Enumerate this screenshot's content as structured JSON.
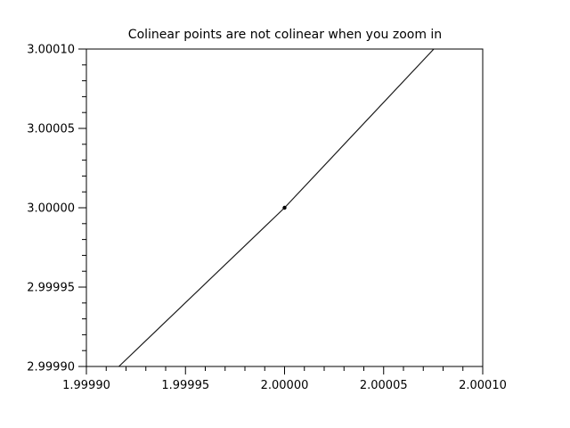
{
  "figure": {
    "background": "#ffffff",
    "axis_color": "#000000",
    "line_color": "#1a1a1a",
    "marker_color": "#000000"
  },
  "chart_data": {
    "type": "line",
    "title": "Colinear points are not colinear when you zoom in",
    "xlabel": "",
    "ylabel": "",
    "xlim": [
      1.9999,
      2.0001
    ],
    "ylim": [
      2.9999,
      3.0001
    ],
    "x_tick_labels": [
      "1.99990",
      "1.99995",
      "2.00000",
      "2.00005",
      "2.00010"
    ],
    "y_tick_labels": [
      "2.99990",
      "2.99995",
      "3.00000",
      "3.00005",
      "3.00010"
    ],
    "minor_ticks_between_majors": 4,
    "tick_direction": "out",
    "grid": false,
    "legend": null,
    "series": [
      {
        "name": "line",
        "type": "line",
        "color": "#1a1a1a",
        "points": [
          [
            1.9999164,
            2.9999
          ],
          [
            2.0,
            3.0
          ],
          [
            2.0000753,
            3.0001
          ]
        ]
      },
      {
        "name": "point",
        "type": "scatter",
        "marker": "dot",
        "color": "#000000",
        "points": [
          [
            2.0,
            3.0
          ]
        ]
      }
    ]
  }
}
